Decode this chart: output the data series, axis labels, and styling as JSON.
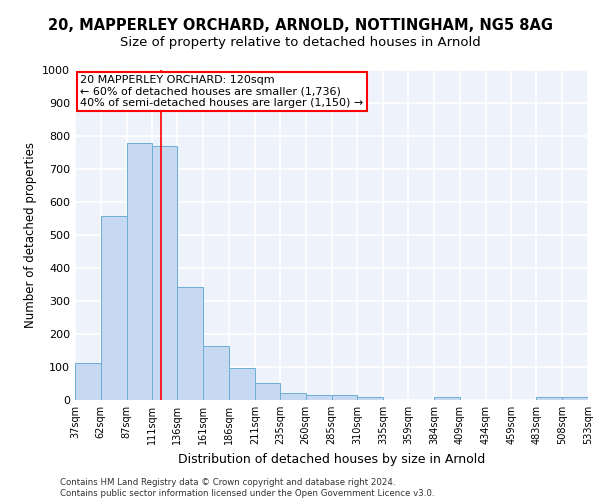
{
  "title1": "20, MAPPERLEY ORCHARD, ARNOLD, NOTTINGHAM, NG5 8AG",
  "title2": "Size of property relative to detached houses in Arnold",
  "xlabel": "Distribution of detached houses by size in Arnold",
  "ylabel": "Number of detached properties",
  "footer1": "Contains HM Land Registry data © Crown copyright and database right 2024.",
  "footer2": "Contains public sector information licensed under the Open Government Licence v3.0.",
  "annotation_line1": "20 MAPPERLEY ORCHARD: 120sqm",
  "annotation_line2": "← 60% of detached houses are smaller (1,736)",
  "annotation_line3": "40% of semi-detached houses are larger (1,150) →",
  "bar_left_edges": [
    37,
    62,
    87,
    111,
    136,
    161,
    186,
    211,
    235,
    260,
    285,
    310,
    335,
    359,
    384,
    409,
    434,
    459,
    483,
    508
  ],
  "bar_widths": [
    25,
    25,
    24,
    25,
    25,
    25,
    25,
    24,
    25,
    25,
    25,
    25,
    24,
    25,
    25,
    25,
    25,
    24,
    25,
    25
  ],
  "bar_heights": [
    113,
    557,
    779,
    770,
    343,
    165,
    98,
    53,
    20,
    15,
    15,
    8,
    0,
    0,
    10,
    0,
    0,
    0,
    10,
    10
  ],
  "tick_labels": [
    "37sqm",
    "62sqm",
    "87sqm",
    "111sqm",
    "136sqm",
    "161sqm",
    "186sqm",
    "211sqm",
    "235sqm",
    "260sqm",
    "285sqm",
    "310sqm",
    "335sqm",
    "359sqm",
    "384sqm",
    "409sqm",
    "434sqm",
    "459sqm",
    "483sqm",
    "508sqm",
    "533sqm"
  ],
  "bar_color": "#c6d9f0",
  "bar_edge_color": "#6baed6",
  "vline_x": 120,
  "vline_color": "red",
  "annotation_box_color": "red",
  "ylim": [
    0,
    1000
  ],
  "yticks": [
    0,
    100,
    200,
    300,
    400,
    500,
    600,
    700,
    800,
    900,
    1000
  ],
  "bg_color": "#eef2fb",
  "grid_color": "#ffffff",
  "title1_fontsize": 10.5,
  "title2_fontsize": 9.5,
  "ylabel_fontsize": 8.5,
  "xlabel_fontsize": 9
}
